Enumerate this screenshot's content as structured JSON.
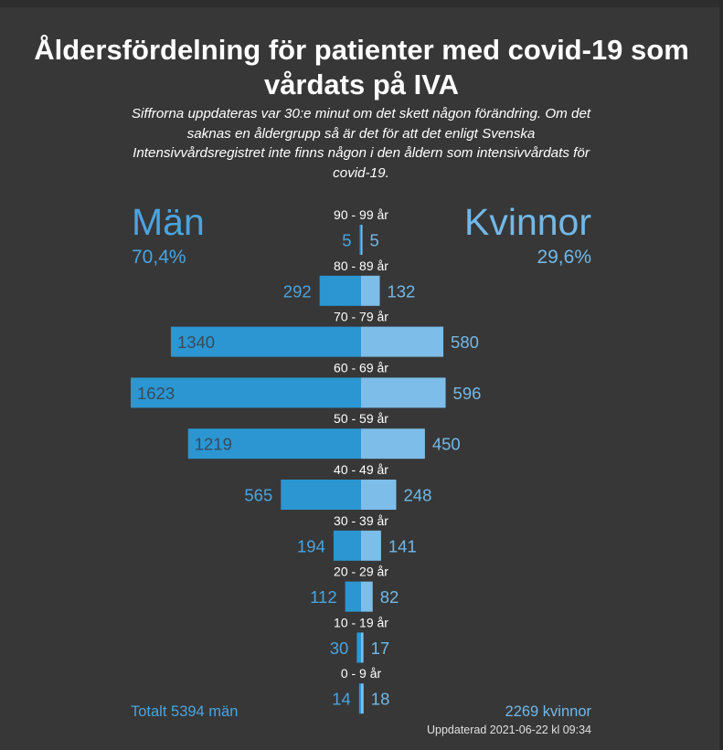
{
  "title": "Åldersfördelning för patienter med covid-19 som vårdats på IVA",
  "subtitle": "Siffrorna uppdateras var 30:e minut om det skett någon förändring. Om det saknas en åldergrupp så är det för att det enligt Svenska Intensivvårdsregistret inte finns någon i den åldern som intensivvårdats för covid-19.",
  "men": {
    "label": "Män",
    "percent": "70,4%",
    "total_text": "Totalt 5394 män"
  },
  "women": {
    "label": "Kvinnor",
    "percent": "29,6%",
    "total_text": "2269 kvinnor"
  },
  "updated": "Uppdaterad 2021-06-22 kl 09:34",
  "colors": {
    "background": "#373737",
    "men_bar": "#2b96d2",
    "women_bar": "#7dbde9",
    "men_text": "#4aa4df",
    "women_text": "#73b8e6",
    "inside_label": "#384b5c"
  },
  "chart_data": {
    "type": "bar",
    "orientation": "horizontal-diverging",
    "categories": [
      "90 - 99 år",
      "80 - 89 år",
      "70 - 79 år",
      "60 - 69 år",
      "50 - 59 år",
      "40 - 49 år",
      "30 - 39 år",
      "20 - 29 år",
      "10 - 19 år",
      "0 - 9 år"
    ],
    "series": [
      {
        "name": "Män",
        "values": [
          5,
          292,
          1340,
          1623,
          1219,
          565,
          194,
          112,
          30,
          14
        ]
      },
      {
        "name": "Kvinnor",
        "values": [
          5,
          132,
          580,
          596,
          450,
          248,
          141,
          82,
          17,
          18
        ]
      }
    ],
    "xlim": [
      0,
      1623
    ],
    "grid": false,
    "legend": "top"
  }
}
